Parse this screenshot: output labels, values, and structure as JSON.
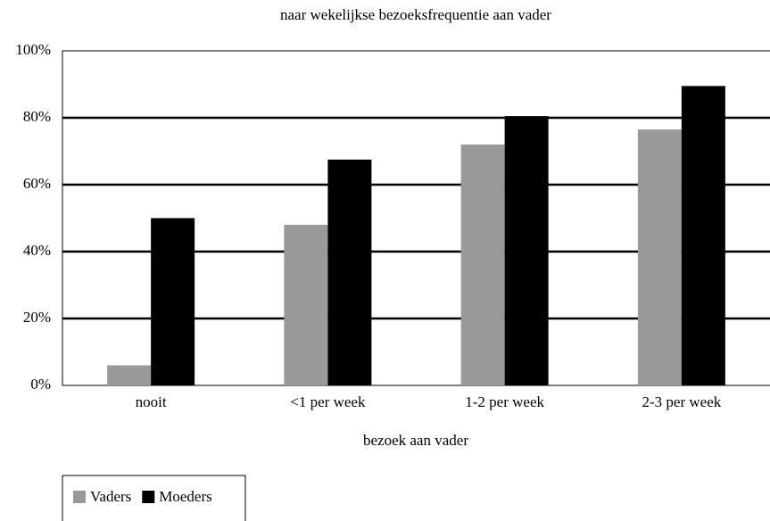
{
  "chart_data": {
    "type": "bar",
    "title": "naar wekelijkse bezoeksfrequentie aan vader",
    "x_label": "bezoek aan vader",
    "categories": [
      "nooit",
      "<1 per week",
      "1-2 per week",
      "2-3 per week"
    ],
    "series": [
      {
        "name": "Vaders",
        "color": "#999999",
        "values": [
          6,
          48,
          72,
          76.5
        ]
      },
      {
        "name": "Moeders",
        "color": "#000000",
        "values": [
          50,
          67.5,
          80.5,
          89.5
        ]
      }
    ],
    "ylim": [
      0,
      100
    ],
    "yticks": [
      {
        "value": 0,
        "label": "0%"
      },
      {
        "value": 20,
        "label": "20%"
      },
      {
        "value": 40,
        "label": "40%"
      },
      {
        "value": 60,
        "label": "60%"
      },
      {
        "value": 80,
        "label": "80%"
      },
      {
        "value": 100,
        "label": "100%"
      }
    ],
    "grid": true,
    "legend": "bottom-left"
  }
}
